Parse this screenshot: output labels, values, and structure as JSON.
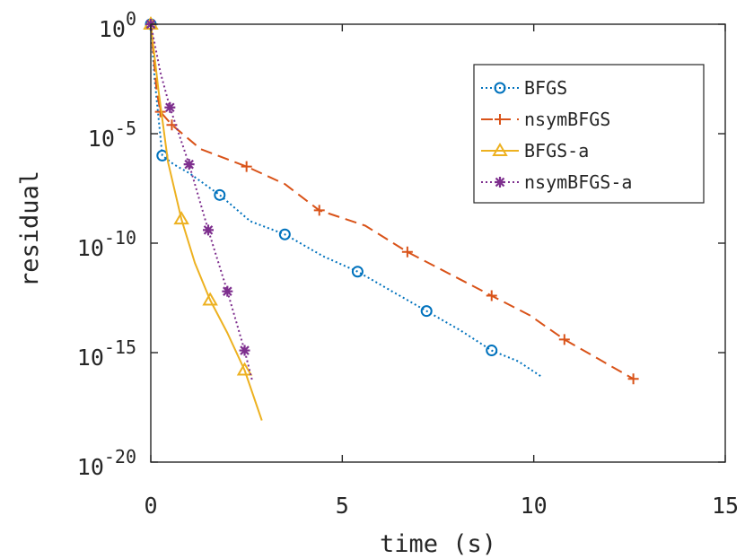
{
  "chart_data": {
    "type": "line",
    "xlabel": "time (s)",
    "ylabel": "residual",
    "xlim": [
      0,
      15
    ],
    "ylim_exponent": [
      -20,
      0
    ],
    "y_scale": "log",
    "x_ticks": [
      "0",
      "5",
      "10",
      "15"
    ],
    "y_ticks": [
      {
        "base": "10",
        "exp": "0"
      },
      {
        "base": "10",
        "exp": "-5"
      },
      {
        "base": "10",
        "exp": "-10"
      },
      {
        "base": "10",
        "exp": "-15"
      },
      {
        "base": "10",
        "exp": "-20"
      }
    ],
    "y_tick_values": [
      0,
      -5,
      -10,
      -15,
      -20
    ],
    "grid": false,
    "legend_position": "top-right",
    "series": [
      {
        "name": "BFGS",
        "color": "#0072BD",
        "linestyle": "dotted",
        "marker": "circle",
        "x": [
          0.0,
          0.1,
          0.3,
          0.6,
          1.0,
          1.8,
          2.6,
          3.5,
          4.5,
          5.4,
          6.3,
          7.2,
          8.1,
          8.9,
          9.6,
          10.2
        ],
        "y": [
          0.0,
          -2.5,
          -6.0,
          -6.4,
          -6.8,
          -7.8,
          -9.0,
          -9.6,
          -10.6,
          -11.3,
          -12.2,
          -13.1,
          -14.0,
          -14.9,
          -15.4,
          -16.1
        ],
        "marker_x": [
          0.0,
          0.3,
          1.8,
          3.5,
          5.4,
          7.2,
          8.9
        ],
        "marker_y": [
          0.0,
          -6.0,
          -7.8,
          -9.6,
          -11.3,
          -13.1,
          -14.9
        ]
      },
      {
        "name": "nsymBFGS",
        "color": "#D95319",
        "linestyle": "dashed",
        "marker": "plus",
        "x": [
          0.0,
          0.15,
          0.25,
          0.55,
          1.3,
          2.5,
          3.5,
          4.4,
          5.6,
          6.7,
          7.8,
          8.9,
          9.9,
          10.8,
          11.7,
          12.6
        ],
        "y": [
          0.0,
          -3.0,
          -4.0,
          -4.6,
          -5.7,
          -6.5,
          -7.3,
          -8.5,
          -9.2,
          -10.4,
          -11.4,
          -12.4,
          -13.3,
          -14.4,
          -15.3,
          -16.2
        ],
        "marker_x": [
          0.0,
          0.25,
          0.55,
          2.5,
          4.4,
          6.7,
          8.9,
          10.8,
          12.6
        ],
        "marker_y": [
          0.0,
          -4.0,
          -4.6,
          -6.5,
          -8.5,
          -10.4,
          -12.4,
          -14.4,
          -16.2
        ]
      },
      {
        "name": "BFGS-a",
        "color": "#EDB120",
        "linestyle": "solid",
        "marker": "triangle",
        "x": [
          0.0,
          0.2,
          0.45,
          0.8,
          1.15,
          1.55,
          2.0,
          2.45,
          2.9
        ],
        "y": [
          0.0,
          -3.0,
          -6.3,
          -8.9,
          -10.9,
          -12.6,
          -14.1,
          -15.8,
          -18.1
        ],
        "marker_x": [
          0.0,
          0.8,
          1.55,
          2.45
        ],
        "marker_y": [
          0.0,
          -8.9,
          -12.6,
          -15.8
        ]
      },
      {
        "name": "nsymBFGS-a",
        "color": "#7E2F8E",
        "linestyle": "dotted",
        "marker": "star",
        "x": [
          0.0,
          0.25,
          0.5,
          1.0,
          1.5,
          2.0,
          2.45,
          2.65
        ],
        "y": [
          0.0,
          -2.2,
          -3.8,
          -6.4,
          -9.4,
          -12.2,
          -14.9,
          -16.3
        ],
        "marker_x": [
          0.0,
          0.5,
          1.0,
          1.5,
          2.0,
          2.45
        ],
        "marker_y": [
          0.0,
          -3.8,
          -6.4,
          -9.4,
          -12.2,
          -14.9
        ]
      }
    ]
  }
}
